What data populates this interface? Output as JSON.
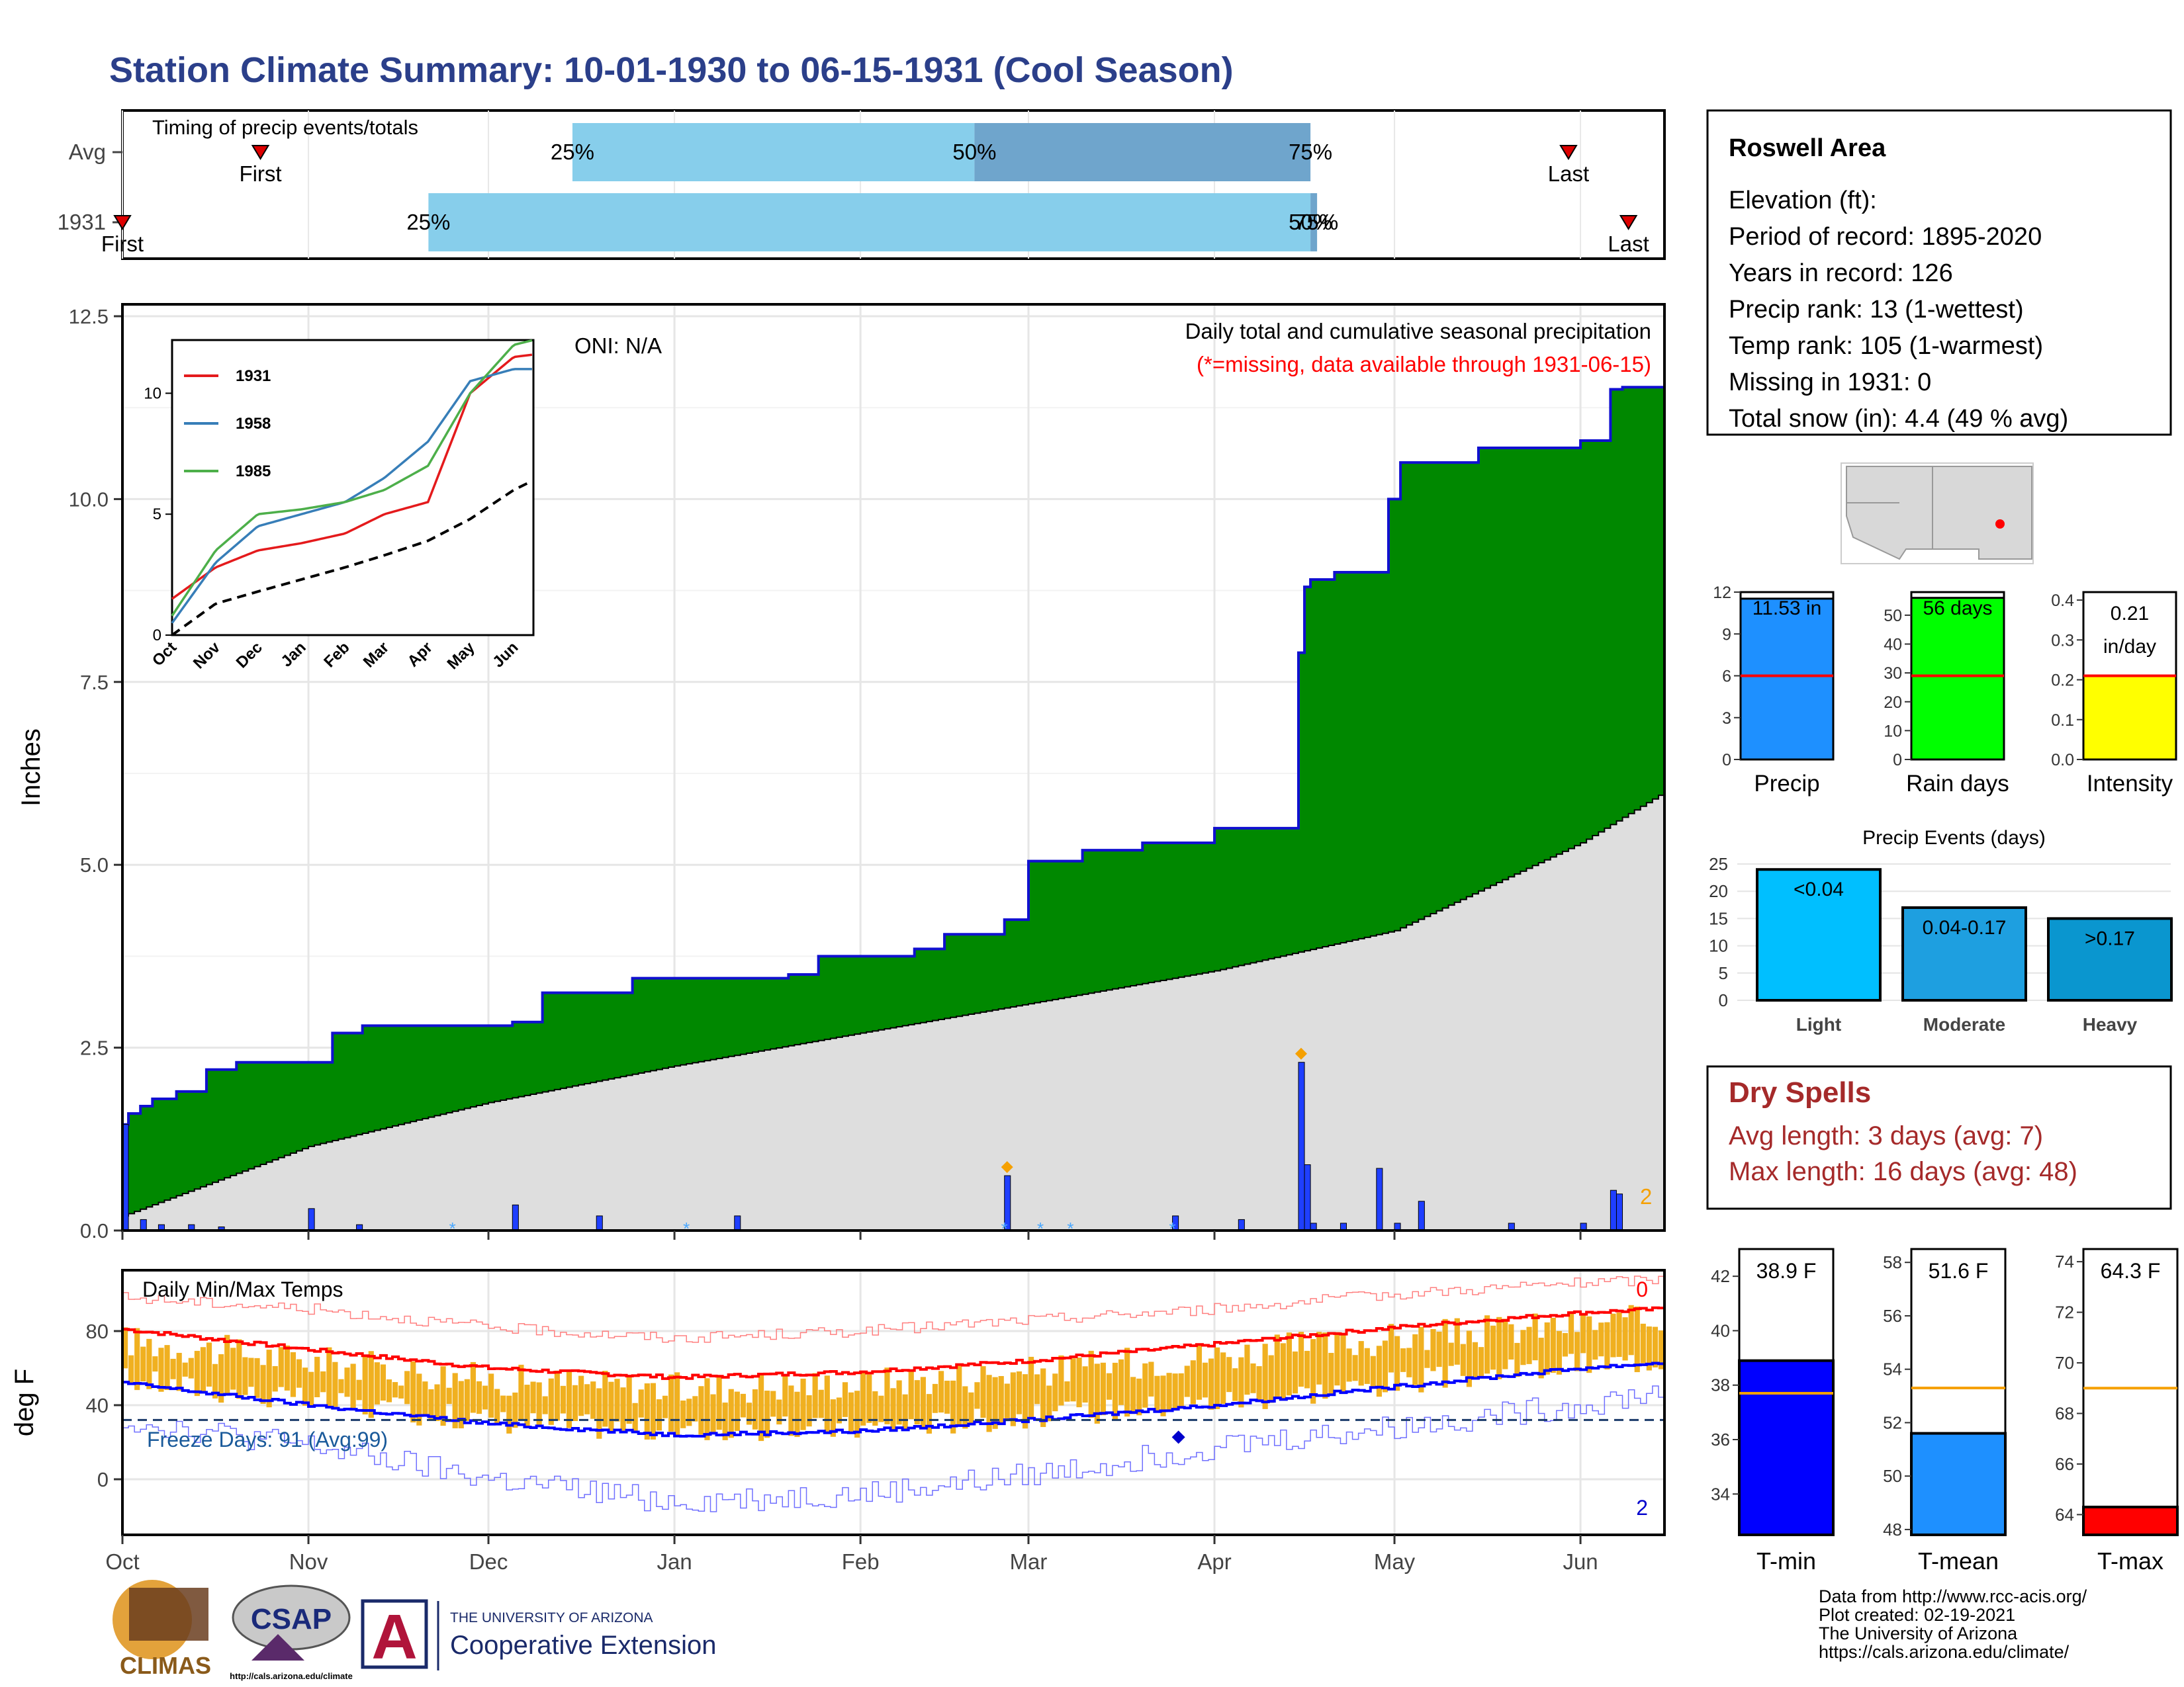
{
  "title": "Station Climate Summary: 10-01-1930 to 06-15-1931 (Cool Season)",
  "colors": {
    "title": "#2b3f8a",
    "green_fill": "#008800",
    "cum_line": "#1010d0",
    "gray_fill": "#dedede",
    "bar_blue": "#1f3fff",
    "timing_light": "#87ceeb",
    "timing_dark": "#6fa5cc",
    "dry_red": "#a52a2a",
    "max_red": "#ff0000",
    "min_blue": "#0000ff",
    "orange": "#f0b020"
  },
  "timing": {
    "title": "Timing of precip events/totals",
    "rows": [
      "Avg",
      "1931"
    ],
    "avg": {
      "first_label": "First",
      "last_label": "Last",
      "first": "1930-10-24",
      "last": "1931-05-30",
      "p25": "1930-12-15",
      "p50": "1931-02-20",
      "p75": "1931-04-17"
    },
    "yr": {
      "first_label": "First",
      "last_label": "Last",
      "first": "1930-10-01",
      "last": "1931-06-09",
      "p25": "1930-11-21",
      "p50": "1931-04-17",
      "p75": "1931-04-18"
    },
    "p25_label": "25%",
    "p50_label": "50%",
    "p75_label": "75%"
  },
  "precip_panel": {
    "ylabel": "Inches",
    "oni": "ONI: N/A",
    "label1": "Daily total and cumulative seasonal precipitation",
    "label2": "(*=missing, data available through 1931-06-15)",
    "count_label": "2",
    "yticks": [
      "0.0",
      "2.5",
      "5.0",
      "7.5",
      "10.0",
      "12.5"
    ],
    "ymax": 12.5
  },
  "temp_panel": {
    "title": "Daily Min/Max Temps",
    "ylabel": "deg F",
    "freeze": "Freeze Days: 91 (Avg:99)",
    "top_count": "0",
    "bottom_count": "2",
    "yticks": [
      "0",
      "40",
      "80"
    ],
    "xticks": [
      "Oct",
      "Nov",
      "Dec",
      "Jan",
      "Feb",
      "Mar",
      "Apr",
      "May",
      "Jun"
    ]
  },
  "inset": {
    "series_names": [
      "1931",
      "1958",
      "1985"
    ],
    "series_colors": [
      "#e41a1c",
      "#377eb8",
      "#4daf4a"
    ],
    "yticks": [
      "0",
      "5",
      "10"
    ],
    "xticks": [
      "Oct",
      "Nov",
      "Dec",
      "Jan",
      "Feb",
      "Mar",
      "Apr",
      "May",
      "Jun"
    ]
  },
  "info": {
    "station": "Roswell Area",
    "lines": [
      "Elevation (ft):",
      "Period of record: 1895-2020",
      "Years in record: 126",
      "Precip rank: 13 (1-wettest)",
      "Temp rank: 105 (1-warmest)",
      "Missing in 1931: 0",
      "Total snow (in): 4.4 (49 % avg)"
    ]
  },
  "mini_bars": [
    {
      "label": "Precip",
      "value_label": "11.53 in",
      "value": 11.53,
      "avg": 6.0,
      "ymax": 12,
      "yticks": [
        "0",
        "3",
        "6",
        "9",
        "12"
      ],
      "color": "#1e90ff"
    },
    {
      "label": "Rain days",
      "value_label": "56 days",
      "value": 56,
      "avg": 29,
      "ymax": 58,
      "yticks": [
        "0",
        "10",
        "20",
        "30",
        "40",
        "50"
      ],
      "color": "#00ff00"
    },
    {
      "label": "Intensity",
      "value_label": "0.21 in/day",
      "value": 0.21,
      "avg": 0.21,
      "ymax": 0.42,
      "yticks": [
        "0.0",
        "0.1",
        "0.2",
        "0.3",
        "0.4"
      ],
      "color": "#ffff00"
    }
  ],
  "events": {
    "title": "Precip Events (days)",
    "yticks": [
      "0",
      "5",
      "10",
      "15",
      "20",
      "25"
    ],
    "bars": [
      {
        "name": "Light",
        "label": "<0.04",
        "value": 24,
        "color": "#00bfff"
      },
      {
        "name": "Moderate",
        "label": "0.04-0.17",
        "value": 17,
        "color": "#1e9fe0"
      },
      {
        "name": "Heavy",
        "label": ">0.17",
        "value": 15,
        "color": "#0a96cf"
      }
    ]
  },
  "dry": {
    "title": "Dry Spells",
    "avg": "Avg length: 3 days (avg: 7)",
    "max": "Max length: 16 days (avg: 48)"
  },
  "temp_bars": [
    {
      "label": "T-min",
      "value_label": "38.9 F",
      "value": 38.9,
      "avg": 37.7,
      "ymin": 32.5,
      "ymax": 43,
      "yticks": [
        "34",
        "36",
        "38",
        "40",
        "42"
      ],
      "color": "#0000ff"
    },
    {
      "label": "T-mean",
      "value_label": "51.6 F",
      "value": 51.6,
      "avg": 53.3,
      "ymin": 47.8,
      "ymax": 58.5,
      "yticks": [
        "48",
        "50",
        "52",
        "54",
        "56",
        "58"
      ],
      "color": "#1e90ff"
    },
    {
      "label": "T-max",
      "value_label": "64.3 F",
      "value": 64.3,
      "avg": 69.0,
      "ymin": 63.2,
      "ymax": 74.5,
      "yticks": [
        "64",
        "66",
        "68",
        "70",
        "72",
        "74"
      ],
      "color": "#ff0000"
    }
  ],
  "footer": [
    "Data from http://www.rcc-acis.org/",
    "Plot created: 02-19-2021",
    "The University of Arizona",
    "https://cals.arizona.edu/climate/"
  ],
  "logos": {
    "climas": "CLIMAS",
    "csap": "CSAP",
    "csap_url": "http://cals.arizona.edu/climate",
    "ua_small": "THE UNIVERSITY OF ARIZONA",
    "ua_big": "Cooperative Extension",
    "ua_letter": "A"
  },
  "chart_data": [
    {
      "type": "area",
      "title": "Daily total and cumulative seasonal precipitation",
      "ylabel": "Inches",
      "ylim": [
        0,
        12.5
      ],
      "series": [
        {
          "name": "1931",
          "x": [
            "1930-10-01",
            "1930-10-02",
            "1930-10-04",
            "1930-10-06",
            "1930-10-10",
            "1930-10-15",
            "1930-10-20",
            "1930-10-25",
            "1930-11-05",
            "1930-11-10",
            "1930-12-05",
            "1930-12-10",
            "1930-12-25",
            "1931-01-20",
            "1931-01-25",
            "1931-02-10",
            "1931-02-15",
            "1931-02-25",
            "1931-03-01",
            "1931-03-10",
            "1931-03-20",
            "1931-04-01",
            "1931-04-15",
            "1931-04-16",
            "1931-04-17",
            "1931-04-21",
            "1931-04-30",
            "1931-05-02",
            "1931-05-15",
            "1931-06-01",
            "1931-06-06",
            "1931-06-08",
            "1931-06-15"
          ],
          "values": [
            1.45,
            1.6,
            1.7,
            1.8,
            1.9,
            2.2,
            2.3,
            2.3,
            2.7,
            2.8,
            2.85,
            3.25,
            3.45,
            3.5,
            3.75,
            3.85,
            4.05,
            4.25,
            5.05,
            5.2,
            5.3,
            5.5,
            7.9,
            8.8,
            8.9,
            9.0,
            10.0,
            10.5,
            10.7,
            10.8,
            11.5,
            11.53,
            11.53
          ]
        },
        {
          "name": "Avg",
          "x": [
            "1930-10-01",
            "1930-11-01",
            "1930-12-01",
            "1931-01-01",
            "1931-02-01",
            "1931-03-01",
            "1931-04-01",
            "1931-05-01",
            "1931-06-01",
            "1931-06-15"
          ],
          "values": [
            0.2,
            1.15,
            1.75,
            2.25,
            2.7,
            3.1,
            3.55,
            4.1,
            5.3,
            6.0
          ]
        }
      ],
      "daily_bars": {
        "x": [
          "1930-10-01",
          "1930-10-04",
          "1930-10-07",
          "1930-10-12",
          "1930-10-17",
          "1930-11-01",
          "1930-11-09",
          "1930-12-05",
          "1930-12-19",
          "1931-01-11",
          "1931-02-25",
          "1931-03-25",
          "1931-04-05",
          "1931-04-15",
          "1931-04-16",
          "1931-04-17",
          "1931-04-22",
          "1931-04-28",
          "1931-05-01",
          "1931-05-05",
          "1931-05-20",
          "1931-06-01",
          "1931-06-06",
          "1931-06-07"
        ],
        "values": [
          1.45,
          0.15,
          0.08,
          0.08,
          0.05,
          0.3,
          0.08,
          0.35,
          0.2,
          0.2,
          0.75,
          0.2,
          0.15,
          2.3,
          0.9,
          0.1,
          0.1,
          0.85,
          0.1,
          0.4,
          0.1,
          0.1,
          0.55,
          0.5
        ]
      }
    },
    {
      "type": "line",
      "title": "Daily Min/Max Temps",
      "ylabel": "deg F",
      "x": [
        "1930-10-01",
        "1930-11-01",
        "1930-12-01",
        "1931-01-01",
        "1931-02-01",
        "1931-03-01",
        "1931-04-01",
        "1931-05-01",
        "1931-06-01",
        "1931-06-15"
      ],
      "series": [
        {
          "name": "Avg max",
          "values": [
            81,
            70,
            60,
            55,
            58,
            64,
            73,
            82,
            90,
            92
          ]
        },
        {
          "name": "Avg min",
          "values": [
            52,
            40,
            30,
            24,
            26,
            32,
            40,
            50,
            60,
            63
          ]
        },
        {
          "name": "Record max",
          "values": [
            98,
            92,
            82,
            76,
            80,
            86,
            92,
            100,
            106,
            108
          ]
        },
        {
          "name": "Record min",
          "values": [
            32,
            18,
            0,
            -12,
            -8,
            2,
            18,
            28,
            40,
            48
          ]
        }
      ],
      "freeze_line": 32
    },
    {
      "type": "line",
      "xlabel": "",
      "ylim": [
        0,
        12.2
      ],
      "x": [
        "1930-10-01",
        "1930-11-01",
        "1930-12-01",
        "1931-01-01",
        "1931-02-01",
        "1931-03-01",
        "1931-04-01",
        "1931-05-01",
        "1931-06-01",
        "1931-06-15"
      ],
      "series": [
        {
          "name": "1931",
          "values": [
            1.5,
            2.8,
            3.5,
            3.8,
            4.2,
            5.0,
            5.5,
            10.0,
            11.5,
            11.6
          ]
        },
        {
          "name": "1958",
          "values": [
            0.5,
            3.0,
            4.5,
            5.0,
            5.5,
            6.5,
            8.0,
            10.5,
            11.0,
            11.0
          ]
        },
        {
          "name": "1985",
          "values": [
            0.8,
            3.5,
            5.0,
            5.2,
            5.5,
            6.0,
            7.0,
            10.0,
            12.0,
            12.2
          ]
        },
        {
          "name": "Avg",
          "values": [
            0,
            1.3,
            1.8,
            2.3,
            2.8,
            3.3,
            3.9,
            4.8,
            6.0,
            6.4
          ]
        }
      ]
    }
  ]
}
